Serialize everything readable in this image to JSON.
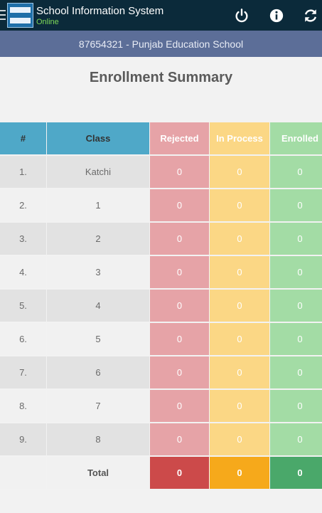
{
  "app": {
    "title": "School Information System",
    "status": "Online",
    "logo_icon": "school-logo",
    "actions": [
      {
        "name": "power-icon"
      },
      {
        "name": "info-icon"
      },
      {
        "name": "refresh-icon"
      }
    ]
  },
  "school": {
    "label": "87654321 - Punjab Education School"
  },
  "page": {
    "heading": "Enrollment Summary"
  },
  "table": {
    "headers": {
      "num": "#",
      "class": "Class",
      "rejected": "Rejected",
      "in_process": "In Process",
      "enrolled": "Enrolled"
    },
    "rows": [
      {
        "num": "1.",
        "class": "Katchi",
        "rejected": "0",
        "in_process": "0",
        "enrolled": "0"
      },
      {
        "num": "2.",
        "class": "1",
        "rejected": "0",
        "in_process": "0",
        "enrolled": "0"
      },
      {
        "num": "3.",
        "class": "2",
        "rejected": "0",
        "in_process": "0",
        "enrolled": "0"
      },
      {
        "num": "4.",
        "class": "3",
        "rejected": "0",
        "in_process": "0",
        "enrolled": "0"
      },
      {
        "num": "5.",
        "class": "4",
        "rejected": "0",
        "in_process": "0",
        "enrolled": "0"
      },
      {
        "num": "6.",
        "class": "5",
        "rejected": "0",
        "in_process": "0",
        "enrolled": "0"
      },
      {
        "num": "7.",
        "class": "6",
        "rejected": "0",
        "in_process": "0",
        "enrolled": "0"
      },
      {
        "num": "8.",
        "class": "7",
        "rejected": "0",
        "in_process": "0",
        "enrolled": "0"
      },
      {
        "num": "9.",
        "class": "8",
        "rejected": "0",
        "in_process": "0",
        "enrolled": "0"
      }
    ],
    "total": {
      "label": "Total",
      "rejected": "0",
      "in_process": "0",
      "enrolled": "0"
    }
  },
  "colors": {
    "topbar": "#0b2a3a",
    "subheader": "#5c6e98",
    "header": "#4fa8c8",
    "rejected": "#e6a3a7",
    "in_process": "#fbd785",
    "enrolled": "#a3dca5",
    "rejected_total": "#cc4a4a",
    "in_process_total": "#f6a91b",
    "enrolled_total": "#4aa86a"
  }
}
